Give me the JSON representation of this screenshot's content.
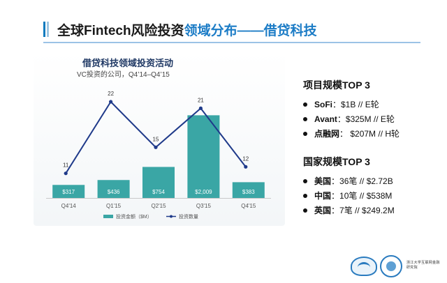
{
  "slide": {
    "title_part1": "全球Fintech风险投资",
    "title_part2": "领域分布——借贷科技",
    "accent_color": "#1c7cc6"
  },
  "chart_data": {
    "type": "bar",
    "title": "借贷科技领域投资活动",
    "subtitle": "VC投资的公司，Q4’14–Q4’15",
    "categories": [
      "Q4'14",
      "Q1'15",
      "Q2'15",
      "Q3'15",
      "Q4'15"
    ],
    "series": [
      {
        "name": "投资金额（$M）",
        "kind": "bar",
        "values": [
          317,
          436,
          754,
          2009,
          383
        ],
        "labels": [
          "$317",
          "$436",
          "$754",
          "$2,009",
          "$383"
        ],
        "color": "#3aa6a5"
      },
      {
        "name": "投资数量",
        "kind": "line",
        "values": [
          11,
          22,
          15,
          21,
          12
        ],
        "color": "#1f3a8a"
      }
    ],
    "ylim_bars": [
      0,
      2100
    ],
    "ylim_line": [
      0,
      28
    ],
    "grid": false,
    "legend_position": "bottom"
  },
  "top_projects": {
    "title": "项目规模TOP 3",
    "items": [
      {
        "name": "SoFi",
        "detail": "：$1B // E轮"
      },
      {
        "name": "Avant",
        "detail": "：$325M // E轮"
      },
      {
        "name": "点融网",
        "detail": "： $207M // H轮"
      }
    ]
  },
  "top_countries": {
    "title": "国家规模TOP 3",
    "items": [
      {
        "name": "美国",
        "detail": "：36笔 // $2.72B"
      },
      {
        "name": "中国",
        "detail": "：10笔 // $538M"
      },
      {
        "name": "英国",
        "detail": "：7笔 // $249.2M"
      }
    ]
  },
  "footer": {
    "institute_text": "浙江大学互联网金融研究院"
  }
}
